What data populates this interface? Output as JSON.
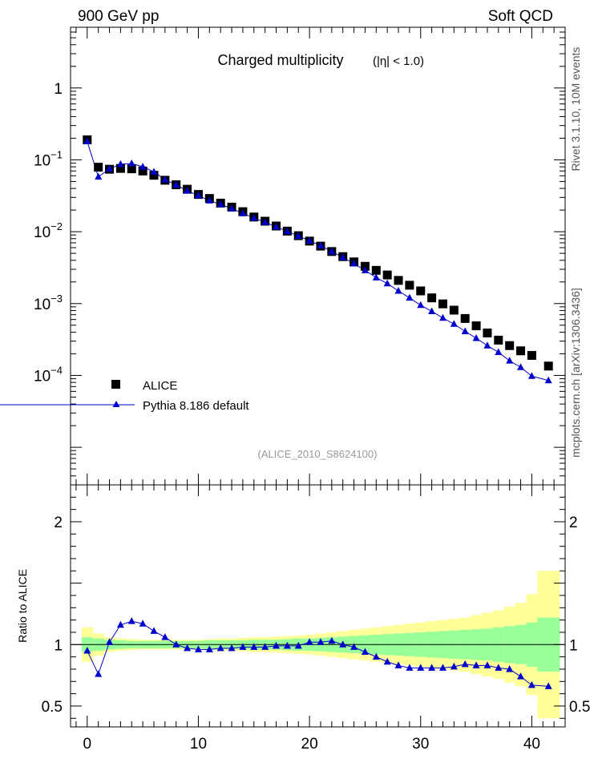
{
  "header": {
    "left": "900 GeV pp",
    "right": "Soft QCD"
  },
  "side_labels": {
    "rivet": "Rivet 3.1.10, 10M events",
    "mcplots": "mcplots.cern.ch [arXiv:1306.3436]"
  },
  "chart_data": [
    {
      "type": "scatter",
      "title": "Charged multiplicity",
      "subtitle": "(|η| < 1.0)",
      "analysis_tag": "(ALICE_2010_S8624100)",
      "xlim": [
        -1.5,
        43
      ],
      "ylim": [
        3e-06,
        7
      ],
      "yscale": "log",
      "ytick_labels": [
        "10^-4",
        "10^-3",
        "10^-2",
        "10^-1",
        "1"
      ],
      "legend_position": "bottom-left",
      "series": [
        {
          "name": "ALICE",
          "marker": "square",
          "color": "#000000",
          "x": [
            0,
            1,
            2,
            3,
            4,
            5,
            6,
            7,
            8,
            9,
            10,
            11,
            12,
            13,
            14,
            15,
            16,
            17,
            18,
            19,
            20,
            21,
            22,
            23,
            24,
            25,
            26,
            27,
            28,
            29,
            30,
            31,
            32,
            33,
            34,
            35,
            36,
            37,
            38,
            39,
            40,
            41.5
          ],
          "y": [
            0.19,
            0.079,
            0.074,
            0.076,
            0.075,
            0.07,
            0.061,
            0.052,
            0.045,
            0.039,
            0.033,
            0.029,
            0.025,
            0.022,
            0.019,
            0.016,
            0.014,
            0.012,
            0.0102,
            0.0088,
            0.0074,
            0.0063,
            0.0053,
            0.0045,
            0.0038,
            0.0033,
            0.0029,
            0.0025,
            0.0021,
            0.0018,
            0.0015,
            0.0012,
            0.00099,
            0.00081,
            0.00062,
            0.00049,
            0.00039,
            0.00031,
            0.00026,
            0.00022,
            0.00019,
            0.000135
          ]
        },
        {
          "name": "Pythia 8.186 default",
          "marker": "triangle",
          "color": "#0000cc",
          "x": [
            0,
            1,
            2,
            3,
            4,
            5,
            6,
            7,
            8,
            9,
            10,
            11,
            12,
            13,
            14,
            15,
            16,
            17,
            18,
            19,
            20,
            21,
            22,
            23,
            24,
            25,
            26,
            27,
            28,
            29,
            30,
            31,
            32,
            33,
            34,
            35,
            36,
            37,
            38,
            39,
            40,
            41.5
          ],
          "y": [
            0.18,
            0.058,
            0.075,
            0.087,
            0.089,
            0.08,
            0.068,
            0.053,
            0.045,
            0.037,
            0.032,
            0.027,
            0.024,
            0.021,
            0.018,
            0.0155,
            0.0135,
            0.0117,
            0.0101,
            0.0087,
            0.0075,
            0.0064,
            0.0053,
            0.0044,
            0.0036,
            0.0029,
            0.0023,
            0.0019,
            0.0015,
            0.0012,
            0.00095,
            0.00078,
            0.00063,
            0.00052,
            0.00041,
            0.00033,
            0.00026,
            0.00021,
            0.00016,
            0.00013,
            9.8e-05,
            8.5e-05
          ]
        }
      ]
    },
    {
      "type": "line",
      "ylabel": "Ratio to ALICE",
      "xlim": [
        -1.5,
        43
      ],
      "ylim": [
        0.33,
        2.3
      ],
      "xticks": [
        0,
        10,
        20,
        30,
        40
      ],
      "yticks": [
        0.5,
        1,
        2
      ],
      "reference_line": 1,
      "bands": {
        "edges": [
          -0.5,
          0.5,
          1.5,
          2.5,
          3.5,
          4.5,
          5.5,
          6.5,
          7.5,
          8.5,
          9.5,
          10.5,
          11.5,
          12.5,
          13.5,
          14.5,
          15.5,
          16.5,
          17.5,
          18.5,
          19.5,
          20.5,
          21.5,
          22.5,
          23.5,
          24.5,
          25.5,
          26.5,
          27.5,
          28.5,
          29.5,
          30.5,
          31.5,
          32.5,
          33.5,
          34.5,
          35.5,
          36.5,
          37.5,
          38.5,
          39.5,
          40.5,
          42.5
        ],
        "stat_halfwidth": [
          0.06,
          0.05,
          0.04,
          0.035,
          0.03,
          0.03,
          0.03,
          0.03,
          0.03,
          0.03,
          0.03,
          0.035,
          0.035,
          0.035,
          0.035,
          0.04,
          0.04,
          0.04,
          0.045,
          0.05,
          0.05,
          0.055,
          0.06,
          0.065,
          0.07,
          0.075,
          0.08,
          0.085,
          0.09,
          0.095,
          0.1,
          0.105,
          0.11,
          0.115,
          0.12,
          0.125,
          0.13,
          0.14,
          0.15,
          0.16,
          0.18,
          0.22
        ],
        "total_halfwidth": [
          0.14,
          0.09,
          0.06,
          0.05,
          0.045,
          0.04,
          0.04,
          0.04,
          0.04,
          0.04,
          0.04,
          0.045,
          0.05,
          0.05,
          0.055,
          0.06,
          0.06,
          0.065,
          0.07,
          0.075,
          0.08,
          0.09,
          0.1,
          0.11,
          0.12,
          0.13,
          0.14,
          0.15,
          0.16,
          0.17,
          0.18,
          0.19,
          0.2,
          0.21,
          0.22,
          0.24,
          0.26,
          0.28,
          0.31,
          0.34,
          0.41,
          0.6
        ],
        "colors": {
          "stat": "#99ff99",
          "total": "#ffff99"
        }
      },
      "series": [
        {
          "name": "Pythia 8.186 default",
          "marker": "triangle",
          "color": "#0000cc",
          "x": [
            0,
            1,
            2,
            3,
            4,
            5,
            6,
            7,
            8,
            9,
            10,
            11,
            12,
            13,
            14,
            15,
            16,
            17,
            18,
            19,
            20,
            21,
            22,
            23,
            24,
            25,
            26,
            27,
            28,
            29,
            30,
            31,
            32,
            33,
            34,
            35,
            36,
            37,
            38,
            39,
            40,
            41.5
          ],
          "y": [
            0.95,
            0.76,
            1.02,
            1.16,
            1.19,
            1.17,
            1.11,
            1.06,
            1.0,
            0.97,
            0.96,
            0.96,
            0.97,
            0.97,
            0.98,
            0.98,
            0.98,
            0.99,
            0.99,
            0.99,
            1.02,
            1.02,
            1.03,
            1.0,
            0.98,
            0.94,
            0.9,
            0.86,
            0.83,
            0.81,
            0.81,
            0.81,
            0.81,
            0.82,
            0.84,
            0.83,
            0.83,
            0.81,
            0.8,
            0.74,
            0.67,
            0.66
          ]
        }
      ]
    }
  ]
}
